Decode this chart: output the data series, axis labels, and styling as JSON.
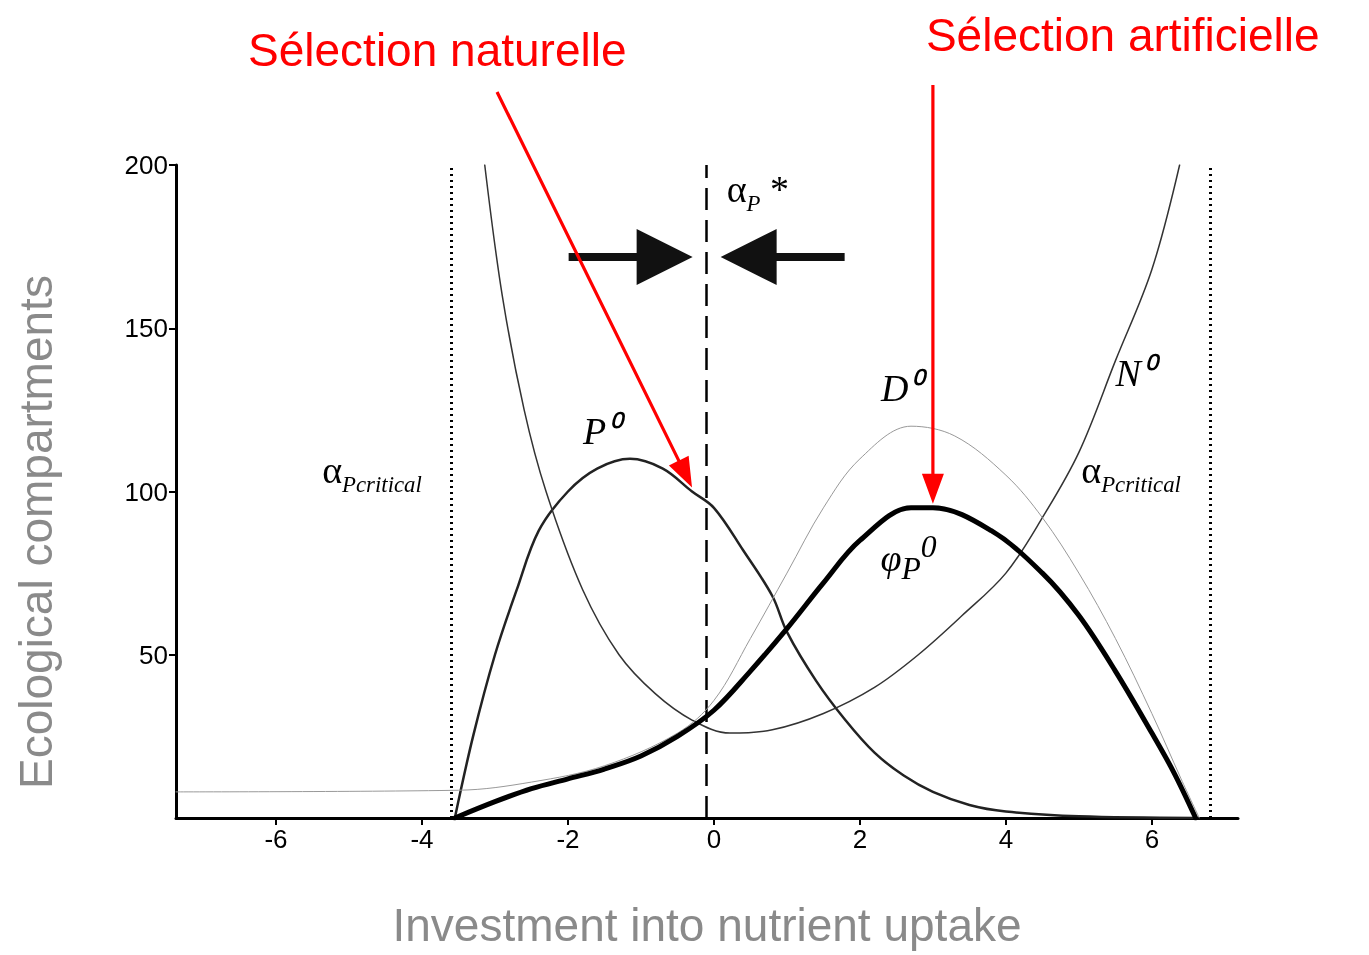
{
  "chart_data": {
    "type": "line",
    "xlabel": "Investment into nutrient uptake",
    "ylabel": "Ecological compartments",
    "xlim": [
      -7.37,
      7.18
    ],
    "xticks": [
      -6,
      -4,
      -2,
      0,
      2,
      4,
      6
    ],
    "ylim": [
      0,
      200
    ],
    "yticks": [
      50,
      100,
      150,
      200
    ],
    "grid": false,
    "legend": false,
    "marker": "none",
    "series": [
      {
        "name": "P⁰",
        "color": "#222222",
        "x": [
          -3.55,
          -3.3,
          -3.0,
          -2.7,
          -2.4,
          -2.0,
          -1.6,
          -1.15,
          -0.7,
          -0.3,
          0,
          0.4,
          0.8,
          1.0,
          1.4,
          1.8,
          2.2,
          2.6,
          3.0,
          3.5,
          4.0,
          5.0,
          6.6
        ],
        "values": [
          0,
          25,
          50,
          70,
          88,
          100,
          107,
          110,
          107,
          100,
          95,
          82,
          68,
          57,
          42,
          30,
          20,
          13,
          8,
          4,
          2,
          0.5,
          0
        ]
      },
      {
        "name": "N⁰",
        "color": "#333333",
        "x": [
          -3.14,
          -2.9,
          -2.6,
          -2.3,
          -1.8,
          -1.3,
          -0.8,
          -0.3,
          0.22,
          0.8,
          1.5,
          2.2,
          2.8,
          3.4,
          4.0,
          4.5,
          5.0,
          5.5,
          6.0,
          6.38
        ],
        "values": [
          200,
          160,
          125,
          100,
          70,
          50,
          38,
          30,
          26,
          27,
          32,
          40,
          50,
          62,
          75,
          92,
          112,
          140,
          168,
          200
        ]
      },
      {
        "name": "D⁰",
        "color": "#999999",
        "x": [
          -7.37,
          -3.5,
          -2.5,
          -1.5,
          -0.5,
          0,
          0.5,
          1.0,
          1.5,
          2.0,
          2.7,
          3.3,
          4.0,
          4.5,
          5.0,
          5.5,
          6.0,
          6.4,
          6.65
        ],
        "values": [
          8,
          8.5,
          11,
          16,
          26,
          36,
          55,
          75,
          95,
          110,
          120,
          117,
          105,
          92,
          75,
          55,
          32,
          12,
          0
        ]
      },
      {
        "name": "φ$_{P}$$^{0}$",
        "color": "#000000",
        "x": [
          -3.55,
          -3.0,
          -2.5,
          -2.0,
          -1.5,
          -1.0,
          -0.5,
          0,
          0.5,
          1.0,
          1.5,
          2.0,
          2.7,
          3.0,
          3.8,
          4.5,
          5.0,
          5.5,
          6.0,
          6.3,
          6.6
        ],
        "values": [
          0,
          5,
          9,
          12,
          15,
          19,
          25,
          33,
          45,
          58,
          72,
          85,
          95,
          95,
          88,
          75,
          62,
          45,
          26,
          14,
          0
        ]
      }
    ],
    "ref_lines": [
      {
        "axis": "x",
        "value": -3.6,
        "label": "α$_{Pcritical}$",
        "color": "#000000",
        "line_style": "dotted"
      },
      {
        "axis": "x",
        "value": -0.1,
        "label": "α$_{P}$ *",
        "color": "#000000",
        "line_style": "dashed"
      },
      {
        "axis": "x",
        "value": 6.8,
        "label": "α$_{Pcritical}$",
        "color": "#000000",
        "line_style": "dotted"
      }
    ],
    "annotations": [
      "Sélection naturelle",
      "Sélection artificielle"
    ]
  }
}
